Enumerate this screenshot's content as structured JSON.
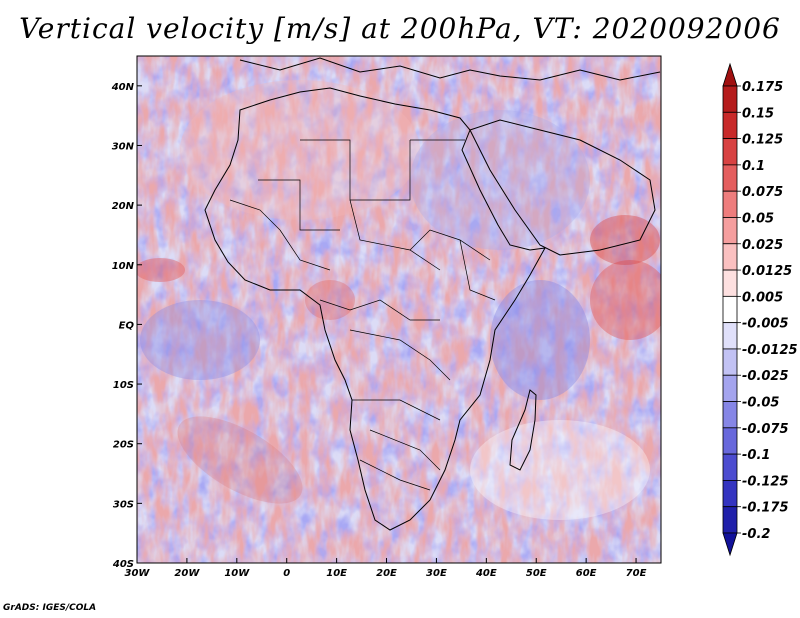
{
  "title": "Vertical velocity [m/s] at 200hPa, VT: 2020092006",
  "credit": "GrADS: IGES/COLA",
  "map": {
    "variable": "Vertical velocity",
    "units": "m/s",
    "level": "200hPa",
    "valid_time": "2020092006",
    "lon_range": [
      -30,
      75
    ],
    "lat_range": [
      -40,
      45
    ],
    "lon_ticks": [
      {
        "value": -30,
        "label": "30W"
      },
      {
        "value": -20,
        "label": "20W"
      },
      {
        "value": -10,
        "label": "10W"
      },
      {
        "value": 0,
        "label": "0"
      },
      {
        "value": 10,
        "label": "10E"
      },
      {
        "value": 20,
        "label": "20E"
      },
      {
        "value": 30,
        "label": "30E"
      },
      {
        "value": 40,
        "label": "40E"
      },
      {
        "value": 50,
        "label": "50E"
      },
      {
        "value": 60,
        "label": "60E"
      },
      {
        "value": 70,
        "label": "70E"
      }
    ],
    "lat_ticks": [
      {
        "value": 40,
        "label": "40N"
      },
      {
        "value": 30,
        "label": "30N"
      },
      {
        "value": 20,
        "label": "20N"
      },
      {
        "value": 10,
        "label": "10N"
      },
      {
        "value": 0,
        "label": "EQ"
      },
      {
        "value": -10,
        "label": "10S"
      },
      {
        "value": -20,
        "label": "20S"
      },
      {
        "value": -30,
        "label": "30S"
      },
      {
        "value": -40,
        "label": "40S"
      }
    ]
  },
  "colorbar": {
    "labels": [
      "0.175",
      "0.15",
      "0.125",
      "0.1",
      "0.075",
      "0.05",
      "0.025",
      "0.0125",
      "0.005",
      "-0.005",
      "-0.0125",
      "-0.025",
      "-0.05",
      "-0.075",
      "-0.1",
      "-0.125",
      "-0.175",
      "-0.2"
    ],
    "colors": [
      "#a01010",
      "#b51c1c",
      "#c82a2a",
      "#d84242",
      "#e45e5e",
      "#ee7d7d",
      "#f59e9e",
      "#fac0c0",
      "#fde0e0",
      "#ffffff",
      "#e0e0fa",
      "#c2c2f4",
      "#a4a4ee",
      "#8686e6",
      "#6868dc",
      "#4c4cd0",
      "#3434c0",
      "#2020aa",
      "#12129a"
    ]
  }
}
